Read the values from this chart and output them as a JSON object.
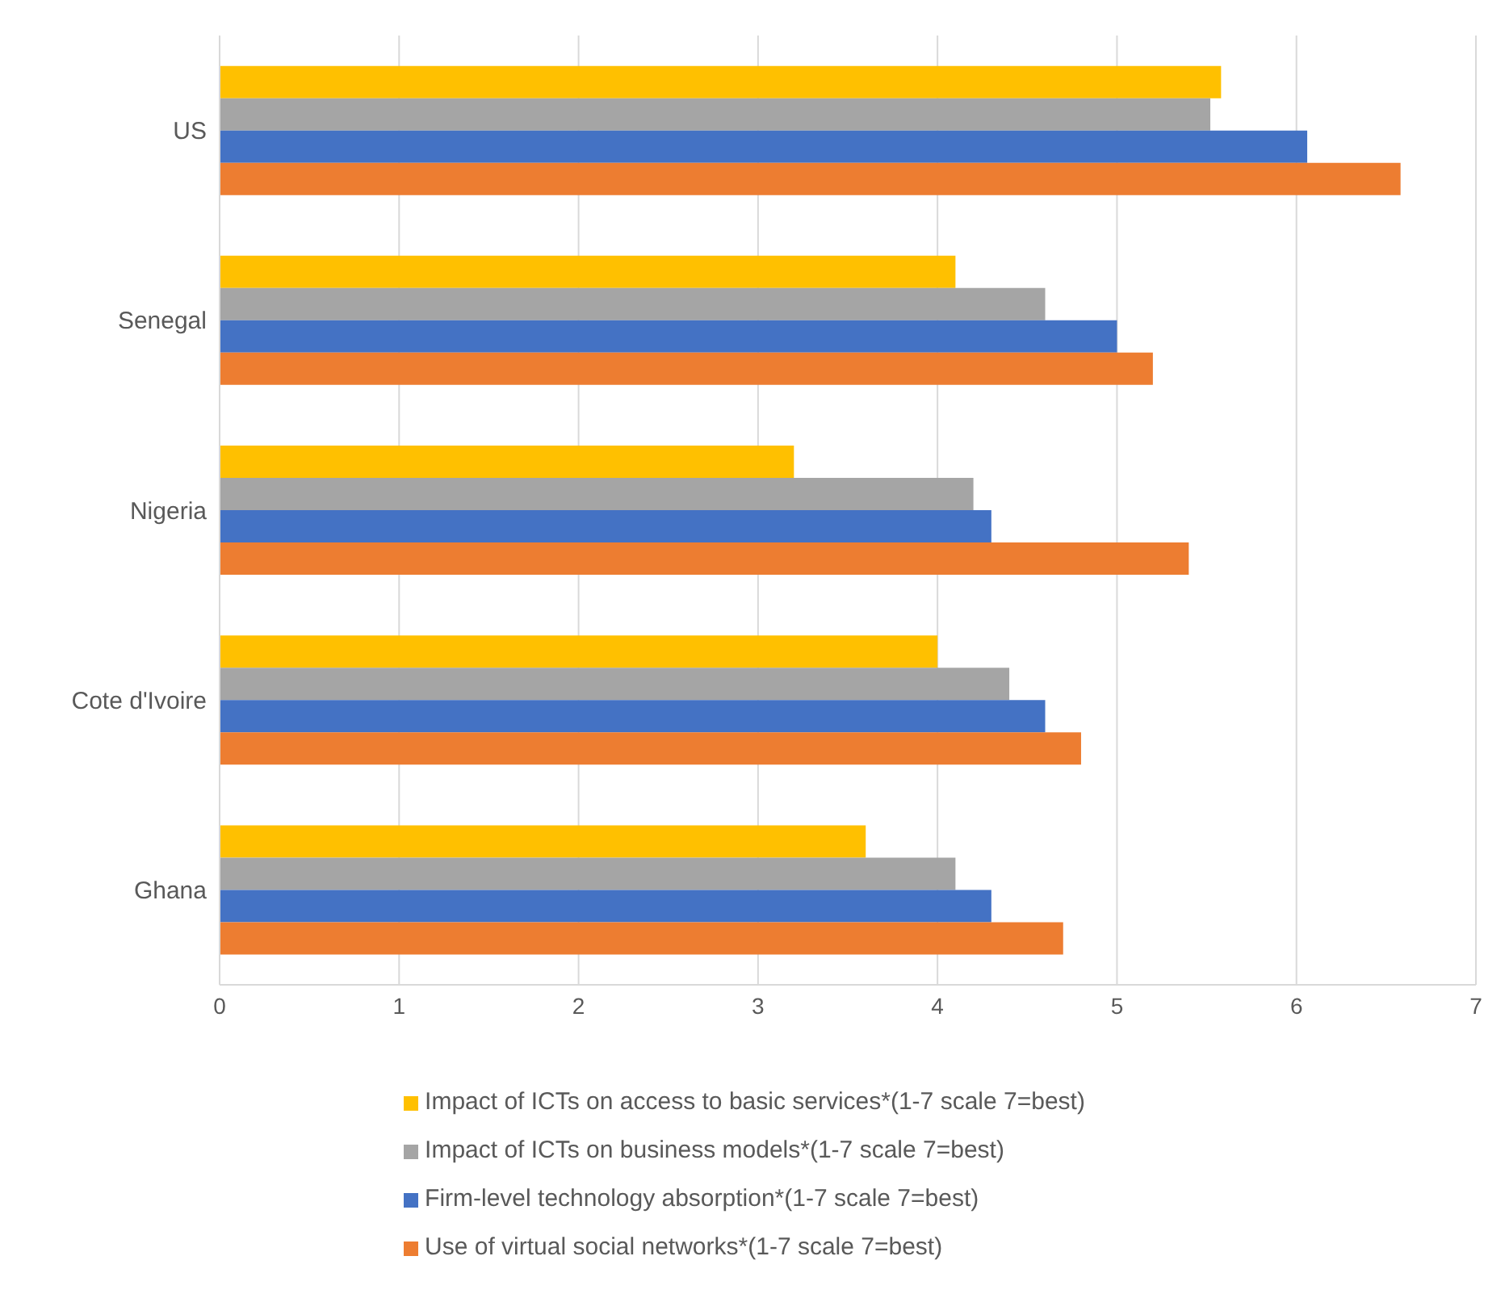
{
  "chart_data": {
    "type": "bar",
    "orientation": "horizontal",
    "categories": [
      "US",
      "Senegal",
      "Nigeria",
      "Cote d'Ivoire",
      "Ghana"
    ],
    "series": [
      {
        "name": "Impact of ICTs on access to basic services*(1-7 scale 7=best)",
        "color": "#ffc000",
        "values": [
          5.58,
          4.1,
          3.2,
          4.0,
          3.6
        ]
      },
      {
        "name": "Impact of ICTs on business models*(1-7 scale 7=best)",
        "color": "#a5a5a5",
        "values": [
          5.52,
          4.6,
          4.2,
          4.4,
          4.1
        ]
      },
      {
        "name": "Firm-level technology absorption*(1-7 scale 7=best)",
        "color": "#4472c4",
        "values": [
          6.06,
          5.0,
          4.3,
          4.6,
          4.3
        ]
      },
      {
        "name": "Use of virtual social networks*(1-7 scale 7=best)",
        "color": "#ed7d31",
        "values": [
          6.58,
          5.2,
          5.4,
          4.8,
          4.7
        ]
      }
    ],
    "xlim": [
      0,
      7
    ],
    "xticks": [
      0,
      1,
      2,
      3,
      4,
      5,
      6,
      7
    ],
    "grid": "x",
    "legend": "bottom"
  }
}
